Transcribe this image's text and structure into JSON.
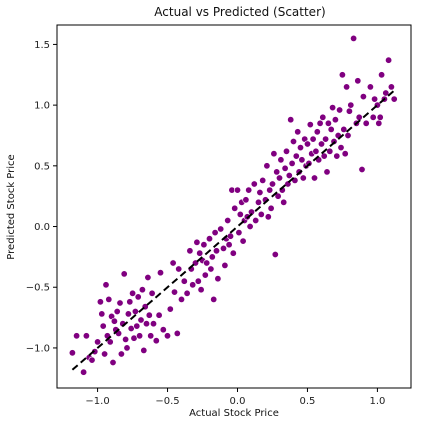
{
  "chart_data": {
    "type": "scatter",
    "title": "Actual vs Predicted (Scatter)",
    "xlabel": "Actual Stock Price",
    "ylabel": "Predicted Stock Price",
    "xlim": [
      -1.29,
      1.24
    ],
    "ylim": [
      -1.33,
      1.66
    ],
    "xticks": [
      -1.0,
      -0.5,
      0.0,
      0.5,
      1.0
    ],
    "xtick_labels": [
      "−1.0",
      "−0.5",
      "0.0",
      "0.5",
      "1.0"
    ],
    "yticks": [
      -1.0,
      -0.5,
      0.0,
      0.5,
      1.0,
      1.5
    ],
    "ytick_labels": [
      "−1.0",
      "−0.5",
      "0.0",
      "0.5",
      "1.0",
      "1.5"
    ],
    "grid": false,
    "point_color": "#800080",
    "line_color": "#000000",
    "reference_line": {
      "style": "dashed",
      "from": [
        -1.18,
        -1.18
      ],
      "to": [
        1.13,
        1.13
      ]
    },
    "points": [
      [
        -1.18,
        -1.04
      ],
      [
        -1.15,
        -0.9
      ],
      [
        -1.1,
        -1.2
      ],
      [
        -1.08,
        -0.9
      ],
      [
        -1.06,
        -1.08
      ],
      [
        -1.04,
        -1.1
      ],
      [
        -1.02,
        -1.03
      ],
      [
        -1.0,
        -0.95
      ],
      [
        -0.98,
        -0.62
      ],
      [
        -0.97,
        -0.72
      ],
      [
        -0.96,
        -0.82
      ],
      [
        -0.95,
        -1.05
      ],
      [
        -0.94,
        -0.48
      ],
      [
        -0.93,
        -0.9
      ],
      [
        -0.92,
        -0.6
      ],
      [
        -0.91,
        -0.95
      ],
      [
        -0.9,
        -0.74
      ],
      [
        -0.89,
        -1.12
      ],
      [
        -0.88,
        -0.78
      ],
      [
        -0.87,
        -0.85
      ],
      [
        -0.86,
        -0.7
      ],
      [
        -0.85,
        -0.88
      ],
      [
        -0.84,
        -0.63
      ],
      [
        -0.83,
        -1.05
      ],
      [
        -0.82,
        -0.8
      ],
      [
        -0.81,
        -0.39
      ],
      [
        -0.8,
        -0.93
      ],
      [
        -0.79,
        -1.0
      ],
      [
        -0.78,
        -0.72
      ],
      [
        -0.77,
        -0.62
      ],
      [
        -0.76,
        -0.84
      ],
      [
        -0.75,
        -0.55
      ],
      [
        -0.74,
        -0.92
      ],
      [
        -0.73,
        -0.7
      ],
      [
        -0.72,
        -0.82
      ],
      [
        -0.71,
        -0.58
      ],
      [
        -0.7,
        -0.9
      ],
      [
        -0.69,
        -0.77
      ],
      [
        -0.68,
        -0.52
      ],
      [
        -0.67,
        -1.02
      ],
      [
        -0.66,
        -0.66
      ],
      [
        -0.65,
        -0.8
      ],
      [
        -0.64,
        -0.42
      ],
      [
        -0.63,
        -0.73
      ],
      [
        -0.62,
        -0.9
      ],
      [
        -0.61,
        -0.55
      ],
      [
        -0.6,
        -0.8
      ],
      [
        -0.58,
        -0.94
      ],
      [
        -0.56,
        -0.73
      ],
      [
        -0.55,
        -0.38
      ],
      [
        -0.53,
        -0.85
      ],
      [
        -0.5,
        -0.9
      ],
      [
        -0.48,
        -0.68
      ],
      [
        -0.46,
        -0.3
      ],
      [
        -0.45,
        -0.54
      ],
      [
        -0.43,
        -0.88
      ],
      [
        -0.42,
        -0.35
      ],
      [
        -0.4,
        -0.6
      ],
      [
        -0.38,
        -0.45
      ],
      [
        -0.36,
        -0.55
      ],
      [
        -0.34,
        -0.2
      ],
      [
        -0.33,
        -0.35
      ],
      [
        -0.32,
        -0.48
      ],
      [
        -0.3,
        -0.3
      ],
      [
        -0.29,
        -0.13
      ],
      [
        -0.28,
        -0.45
      ],
      [
        -0.27,
        -0.22
      ],
      [
        -0.26,
        -0.52
      ],
      [
        -0.25,
        -0.28
      ],
      [
        -0.24,
        -0.15
      ],
      [
        -0.23,
        -0.4
      ],
      [
        -0.22,
        -0.3
      ],
      [
        -0.2,
        -0.1
      ],
      [
        -0.19,
        -0.35
      ],
      [
        -0.18,
        -0.25
      ],
      [
        -0.17,
        -0.6
      ],
      [
        -0.16,
        -0.05
      ],
      [
        -0.15,
        -0.2
      ],
      [
        -0.14,
        -0.43
      ],
      [
        -0.12,
        -0.02
      ],
      [
        -0.1,
        -0.18
      ],
      [
        -0.09,
        -0.32
      ],
      [
        -0.08,
        -0.1
      ],
      [
        -0.07,
        0.05
      ],
      [
        -0.06,
        -0.15
      ],
      [
        -0.05,
        -0.08
      ],
      [
        -0.04,
        0.3
      ],
      [
        -0.03,
        -0.22
      ],
      [
        -0.02,
        0.15
      ],
      [
        0.0,
        0.3
      ],
      [
        0.01,
        -0.05
      ],
      [
        0.02,
        0.1
      ],
      [
        0.03,
        0.2
      ],
      [
        0.04,
        -0.12
      ],
      [
        0.05,
        0.05
      ],
      [
        0.06,
        0.22
      ],
      [
        0.07,
        0.08
      ],
      [
        0.08,
        0.3
      ],
      [
        0.09,
        0.0
      ],
      [
        0.1,
        0.12
      ],
      [
        0.12,
        0.35
      ],
      [
        0.13,
        0.05
      ],
      [
        0.15,
        0.2
      ],
      [
        0.16,
        0.28
      ],
      [
        0.17,
        0.1
      ],
      [
        0.18,
        0.38
      ],
      [
        0.2,
        0.22
      ],
      [
        0.21,
        0.5
      ],
      [
        0.22,
        0.08
      ],
      [
        0.23,
        0.3
      ],
      [
        0.24,
        0.15
      ],
      [
        0.25,
        0.35
      ],
      [
        0.26,
        0.6
      ],
      [
        0.27,
        -0.23
      ],
      [
        0.28,
        0.45
      ],
      [
        0.29,
        0.25
      ],
      [
        0.3,
        0.4
      ],
      [
        0.31,
        0.55
      ],
      [
        0.32,
        0.3
      ],
      [
        0.33,
        0.2
      ],
      [
        0.34,
        0.48
      ],
      [
        0.35,
        0.62
      ],
      [
        0.36,
        0.35
      ],
      [
        0.37,
        0.42
      ],
      [
        0.38,
        0.88
      ],
      [
        0.39,
        0.52
      ],
      [
        0.4,
        0.7
      ],
      [
        0.41,
        0.38
      ],
      [
        0.42,
        0.58
      ],
      [
        0.43,
        0.78
      ],
      [
        0.44,
        0.45
      ],
      [
        0.45,
        0.65
      ],
      [
        0.46,
        0.55
      ],
      [
        0.47,
        0.4
      ],
      [
        0.48,
        0.72
      ],
      [
        0.49,
        0.5
      ],
      [
        0.5,
        0.68
      ],
      [
        0.51,
        0.52
      ],
      [
        0.52,
        0.84
      ],
      [
        0.53,
        0.6
      ],
      [
        0.54,
        0.72
      ],
      [
        0.55,
        0.4
      ],
      [
        0.56,
        0.62
      ],
      [
        0.57,
        0.78
      ],
      [
        0.58,
        0.55
      ],
      [
        0.59,
        0.85
      ],
      [
        0.6,
        0.68
      ],
      [
        0.61,
        0.9
      ],
      [
        0.62,
        0.58
      ],
      [
        0.63,
        0.72
      ],
      [
        0.64,
        0.45
      ],
      [
        0.65,
        0.85
      ],
      [
        0.66,
        0.62
      ],
      [
        0.67,
        0.8
      ],
      [
        0.68,
        0.98
      ],
      [
        0.69,
        0.7
      ],
      [
        0.7,
        0.88
      ],
      [
        0.71,
        0.58
      ],
      [
        0.72,
        0.75
      ],
      [
        0.73,
        0.96
      ],
      [
        0.74,
        0.65
      ],
      [
        0.75,
        1.25
      ],
      [
        0.76,
        0.8
      ],
      [
        0.77,
        0.6
      ],
      [
        0.78,
        1.15
      ],
      [
        0.79,
        0.75
      ],
      [
        0.8,
        0.95
      ],
      [
        0.81,
        1.0
      ],
      [
        0.83,
        1.55
      ],
      [
        0.85,
        0.85
      ],
      [
        0.86,
        1.2
      ],
      [
        0.87,
        0.9
      ],
      [
        0.89,
        0.47
      ],
      [
        0.9,
        1.07
      ],
      [
        0.92,
        0.85
      ],
      [
        0.95,
        1.15
      ],
      [
        0.97,
        0.9
      ],
      [
        0.98,
        1.05
      ],
      [
        1.0,
        1.0
      ],
      [
        1.01,
        0.85
      ],
      [
        1.02,
        0.9
      ],
      [
        1.03,
        1.25
      ],
      [
        1.05,
        1.05
      ],
      [
        1.06,
        1.1
      ],
      [
        1.08,
        1.37
      ],
      [
        1.1,
        1.15
      ],
      [
        1.12,
        1.05
      ]
    ]
  }
}
